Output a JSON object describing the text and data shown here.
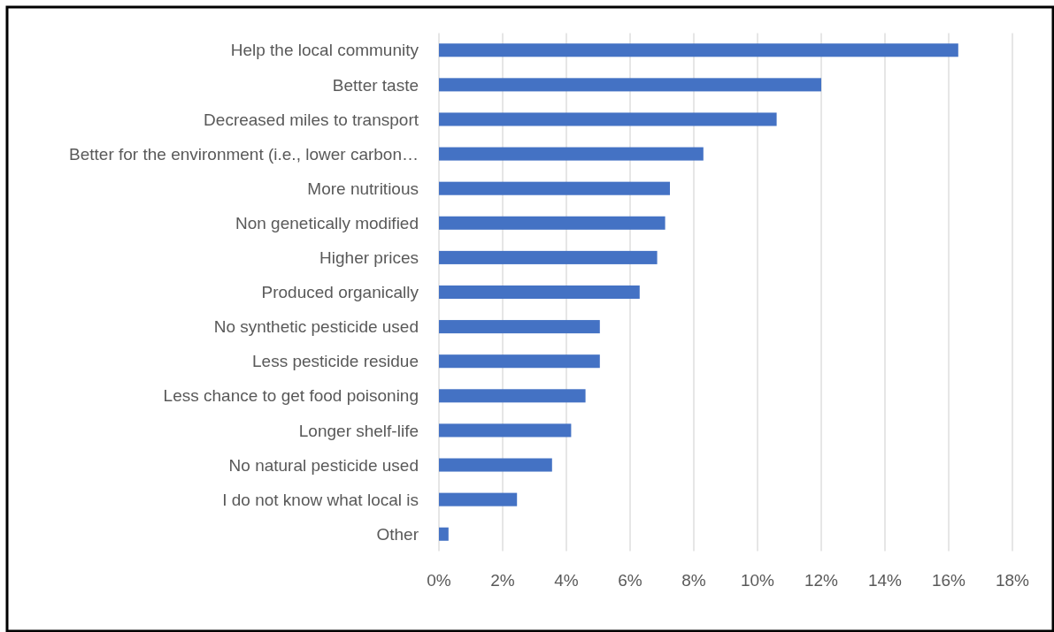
{
  "chart_data": {
    "type": "bar",
    "orientation": "horizontal",
    "categories": [
      "Help the local community",
      "Better taste",
      "Decreased miles to transport",
      "Better for the environment (i.e., lower carbon…",
      "More nutritious",
      "Non genetically modified",
      "Higher prices",
      "Produced organically",
      "No synthetic pesticide used",
      "Less pesticide residue",
      "Less chance to get food poisoning",
      "Longer shelf-life",
      "No natural pesticide used",
      "I do not know what local is",
      "Other"
    ],
    "values": [
      16.3,
      12.0,
      10.6,
      8.3,
      7.25,
      7.1,
      6.85,
      6.3,
      5.05,
      5.05,
      4.6,
      4.15,
      3.55,
      2.45,
      0.3
    ],
    "color": "#4472c4",
    "xlim": [
      0,
      18
    ],
    "xticks": [
      {
        "value": 0,
        "label": "0%"
      },
      {
        "value": 2,
        "label": "2%"
      },
      {
        "value": 4,
        "label": "4%"
      },
      {
        "value": 6,
        "label": "6%"
      },
      {
        "value": 8,
        "label": "8%"
      },
      {
        "value": 10,
        "label": "10%"
      },
      {
        "value": 12,
        "label": "12%"
      },
      {
        "value": 14,
        "label": "14%"
      },
      {
        "value": 16,
        "label": "16%"
      },
      {
        "value": 18,
        "label": "18%"
      }
    ],
    "grid": "x"
  }
}
